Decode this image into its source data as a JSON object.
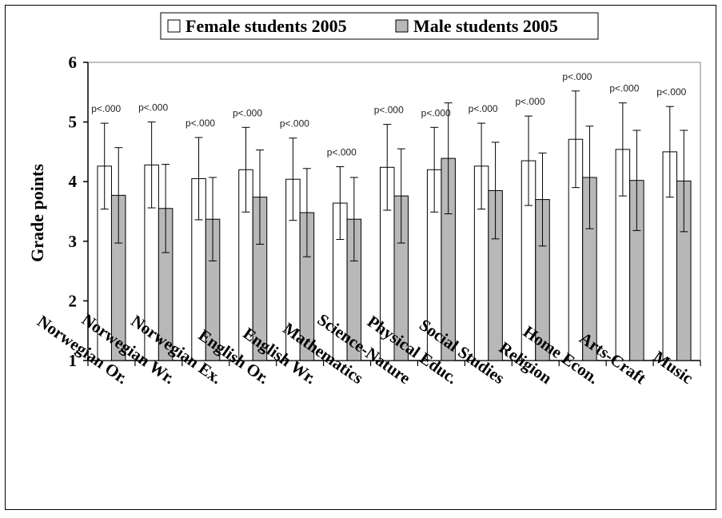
{
  "chart_data": {
    "type": "bar",
    "ylabel": "Grade points",
    "ylim": [
      1,
      6
    ],
    "yticks": [
      "1",
      "2",
      "3",
      "4",
      "5",
      "6"
    ],
    "legend_position": "top-center",
    "categories": [
      "Norwegian Or.",
      "Norwegian Wr.",
      "Norwegian Ex.",
      "English Or.",
      "English Wr.",
      "Mathematics",
      "Science-Nature",
      "Physical Educ.",
      "Social Studies",
      "Religion",
      "Home Econ.",
      "Arts-Craft",
      "Music"
    ],
    "annotations": [
      "p<.000",
      "p<.000",
      "p<.000",
      "p<.000",
      "p<.000",
      "p<.000",
      "p<.000",
      "p<.000",
      "p<.000",
      "p<.000",
      "p<.000",
      "p<.000",
      "p<.000"
    ],
    "series": [
      {
        "name": "Female students 2005",
        "color": "#ffffff",
        "values": [
          4.26,
          4.28,
          4.05,
          4.2,
          4.04,
          3.64,
          4.24,
          4.2,
          4.26,
          4.35,
          4.71,
          4.54,
          4.5
        ],
        "error": [
          0.72,
          0.72,
          0.69,
          0.71,
          0.69,
          0.61,
          0.72,
          0.71,
          0.72,
          0.75,
          0.81,
          0.78,
          0.76
        ]
      },
      {
        "name": "Male students 2005",
        "color": "#b8b8b8",
        "values": [
          3.77,
          3.55,
          3.37,
          3.74,
          3.48,
          3.37,
          3.76,
          4.39,
          3.85,
          3.7,
          4.07,
          4.02,
          4.01
        ],
        "error": [
          0.8,
          0.74,
          0.7,
          0.79,
          0.74,
          0.7,
          0.79,
          0.93,
          0.81,
          0.78,
          0.86,
          0.84,
          0.85
        ]
      }
    ]
  }
}
